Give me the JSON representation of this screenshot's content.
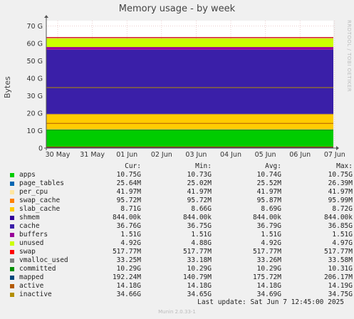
{
  "title": "Memory usage - by week",
  "side_label": "RRDTOOL / TOBI OETIKER",
  "footer": {
    "last_update": "Last update:  Sat Jun  7 12:45:00 2025",
    "munin": "Munin 2.0.33-1"
  },
  "legend": {
    "headers": [
      "Cur:",
      "Min:",
      "Avg:",
      "Max:"
    ],
    "items": [
      {
        "name": "apps",
        "color": "#00cc00",
        "cur": "10.75G",
        "min": "10.73G",
        "avg": "10.74G",
        "max": "10.75G"
      },
      {
        "name": "page_tables",
        "color": "#0066b3",
        "cur": "25.64M",
        "min": "25.02M",
        "avg": "25.52M",
        "max": "26.39M"
      },
      {
        "name": "per_cpu",
        "color": "#ffe6a0",
        "cur": "41.97M",
        "min": "41.97M",
        "avg": "41.97M",
        "max": "41.97M"
      },
      {
        "name": "swap_cache",
        "color": "#ff8000",
        "cur": "95.72M",
        "min": "95.72M",
        "avg": "95.87M",
        "max": "95.99M"
      },
      {
        "name": "slab_cache",
        "color": "#ffcc00",
        "cur": "8.71G",
        "min": "8.66G",
        "avg": "8.69G",
        "max": "8.72G"
      },
      {
        "name": "shmem",
        "color": "#330099",
        "cur": "844.00k",
        "min": "844.00k",
        "avg": "844.00k",
        "max": "844.00k"
      },
      {
        "name": "cache",
        "color": "#3a1fa8",
        "cur": "36.76G",
        "min": "36.75G",
        "avg": "36.79G",
        "max": "36.85G"
      },
      {
        "name": "buffers",
        "color": "#990099",
        "cur": "1.51G",
        "min": "1.51G",
        "avg": "1.51G",
        "max": "1.51G"
      },
      {
        "name": "unused",
        "color": "#ccff00",
        "cur": "4.92G",
        "min": "4.88G",
        "avg": "4.92G",
        "max": "4.97G"
      },
      {
        "name": "swap",
        "color": "#ff0000",
        "cur": "517.77M",
        "min": "517.77M",
        "avg": "517.77M",
        "max": "517.77M"
      },
      {
        "name": "vmalloc_used",
        "color": "#808080",
        "cur": "33.25M",
        "min": "33.18M",
        "avg": "33.26M",
        "max": "33.58M"
      },
      {
        "name": "committed",
        "color": "#008f00",
        "cur": "10.29G",
        "min": "10.29G",
        "avg": "10.29G",
        "max": "10.31G"
      },
      {
        "name": "mapped",
        "color": "#00487d",
        "cur": "192.24M",
        "min": "140.79M",
        "avg": "175.72M",
        "max": "206.17M"
      },
      {
        "name": "active",
        "color": "#b35a00",
        "cur": "14.18G",
        "min": "14.18G",
        "avg": "14.18G",
        "max": "14.19G"
      },
      {
        "name": "inactive",
        "color": "#b38f00",
        "cur": "34.66G",
        "min": "34.65G",
        "avg": "34.69G",
        "max": "34.75G"
      }
    ]
  },
  "chart_data": {
    "type": "area",
    "ylabel": "Bytes",
    "ylim": [
      0,
      73
    ],
    "yticks": [
      0,
      10,
      20,
      30,
      40,
      50,
      60,
      70
    ],
    "ytick_labels": [
      "0",
      "10 G",
      "20 G",
      "30 G",
      "40 G",
      "50 G",
      "60 G",
      "70 G"
    ],
    "x_ticks": [
      "30 May",
      "31 May",
      "01 Jun",
      "02 Jun",
      "03 Jun",
      "04 Jun",
      "05 Jun",
      "06 Jun",
      "07 Jun"
    ],
    "grid": true,
    "stack": [
      {
        "name": "apps",
        "value": 10.75,
        "color": "#00cc00"
      },
      {
        "name": "page_tables",
        "value": 0.025,
        "color": "#0066b3"
      },
      {
        "name": "per_cpu",
        "value": 0.042,
        "color": "#ffe6a0"
      },
      {
        "name": "swap_cache",
        "value": 0.096,
        "color": "#ff8000"
      },
      {
        "name": "slab_cache",
        "value": 8.71,
        "color": "#ffcc00"
      },
      {
        "name": "shmem",
        "value": 0.0008,
        "color": "#330099"
      },
      {
        "name": "cache",
        "value": 36.76,
        "color": "#3a1fa8"
      },
      {
        "name": "buffers",
        "value": 1.51,
        "color": "#990099"
      },
      {
        "name": "unused",
        "value": 4.92,
        "color": "#ccff00"
      }
    ],
    "lines": [
      {
        "name": "swap",
        "value": 0.518,
        "color": "#ff0000"
      },
      {
        "name": "vmalloc_used",
        "value": 0.033,
        "color": "#808080"
      },
      {
        "name": "committed",
        "value": 10.29,
        "color": "#008f00"
      },
      {
        "name": "mapped",
        "value": 0.192,
        "color": "#00487d"
      },
      {
        "name": "active",
        "value": 14.18,
        "color": "#b35a00"
      },
      {
        "name": "inactive",
        "value": 34.66,
        "color": "#b38f00"
      }
    ],
    "total_line": {
      "value": 63.3,
      "color": "#cc0000"
    }
  }
}
